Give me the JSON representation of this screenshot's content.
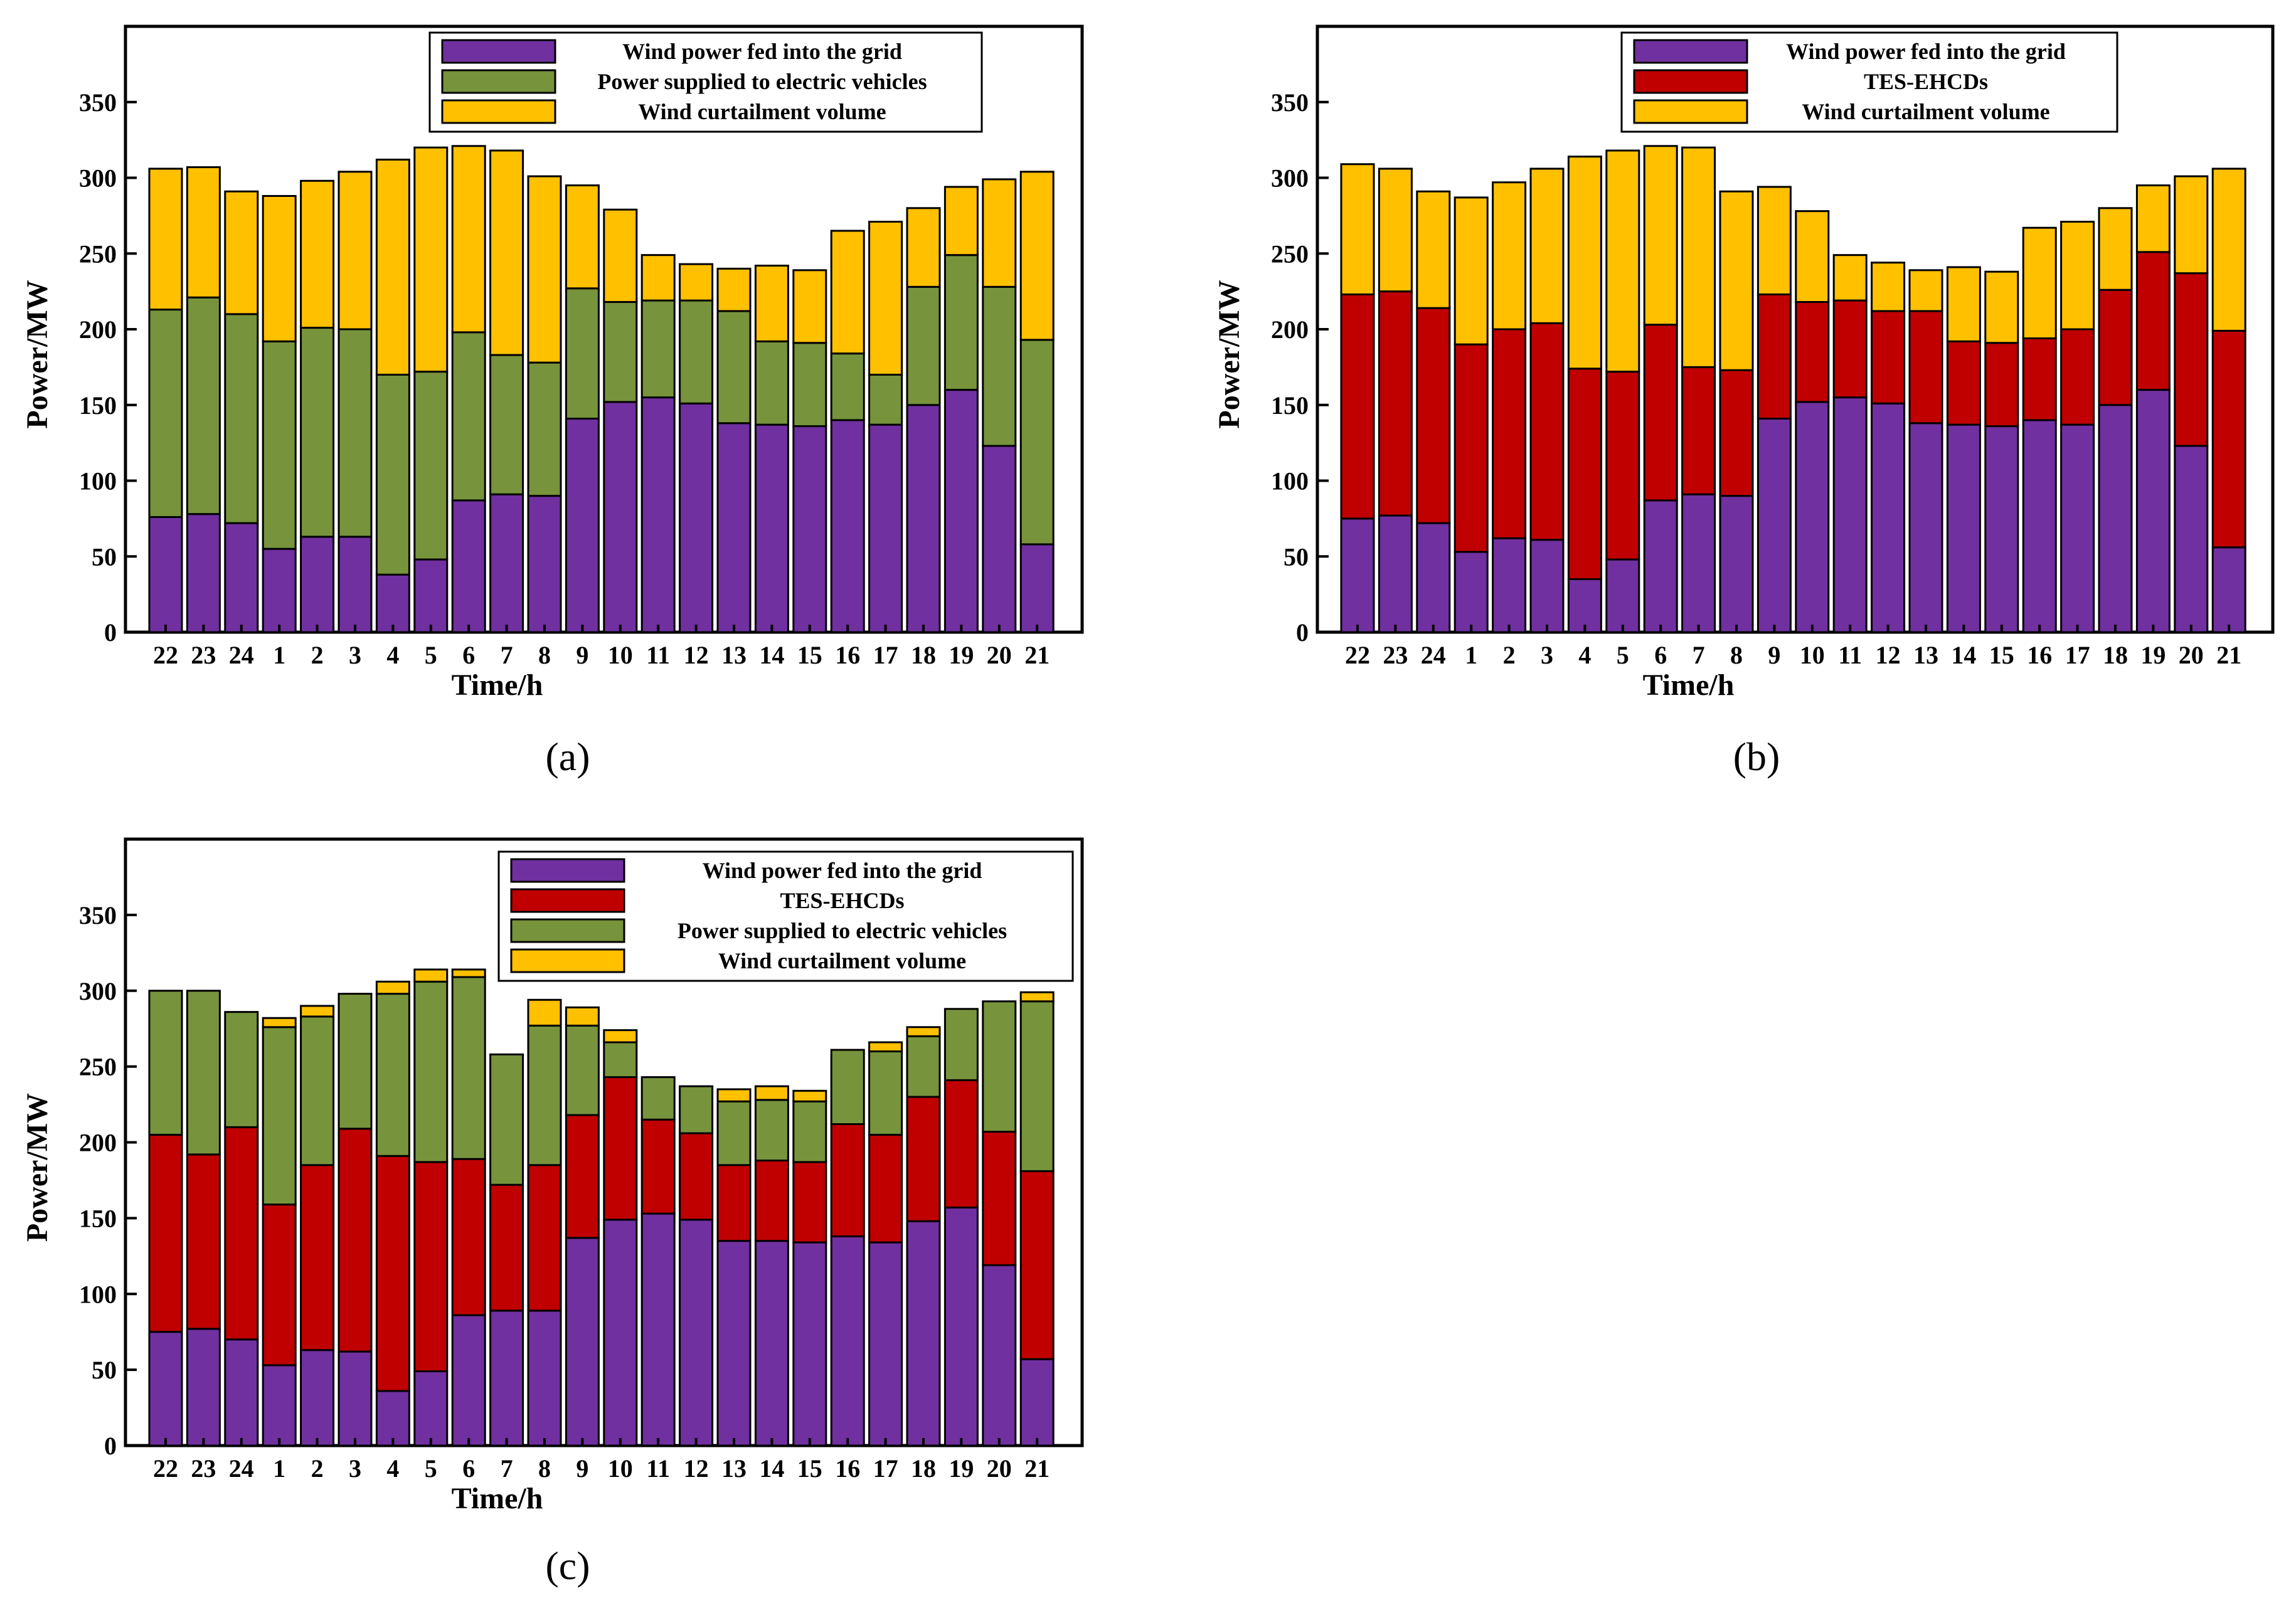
{
  "colors": {
    "grid": "#7030A0",
    "tes": "#C00000",
    "ev": "#77933C",
    "curt": "#FFC000"
  },
  "chart_data": [
    {
      "panel_label": "(a)",
      "type": "stacked-bar",
      "xlabel": "Time/h",
      "ylabel": "Power/MW",
      "ylim": [
        0,
        400
      ],
      "yticks": [
        0,
        50,
        100,
        150,
        200,
        250,
        300,
        350
      ],
      "categories": [
        "22",
        "23",
        "24",
        "1",
        "2",
        "3",
        "4",
        "5",
        "6",
        "7",
        "8",
        "9",
        "10",
        "11",
        "12",
        "13",
        "14",
        "15",
        "16",
        "17",
        "18",
        "19",
        "20",
        "21"
      ],
      "series": [
        {
          "name": "Wind power fed into the grid",
          "key": "grid",
          "values": [
            76,
            78,
            72,
            55,
            63,
            63,
            38,
            48,
            87,
            91,
            90,
            141,
            152,
            155,
            151,
            138,
            137,
            136,
            140,
            137,
            150,
            160,
            123,
            58
          ]
        },
        {
          "name": "Power supplied to electric vehicles",
          "key": "ev",
          "values": [
            137,
            143,
            138,
            137,
            138,
            137,
            132,
            124,
            111,
            92,
            88,
            86,
            66,
            64,
            68,
            74,
            55,
            55,
            44,
            33,
            78,
            89,
            105,
            135
          ]
        },
        {
          "name": "Wind curtailment volume",
          "key": "curt",
          "values": [
            93,
            86,
            81,
            96,
            97,
            104,
            142,
            148,
            123,
            135,
            123,
            68,
            61,
            30,
            24,
            28,
            50,
            48,
            81,
            101,
            52,
            45,
            71,
            111
          ]
        }
      ],
      "legend": [
        "Wind power fed into the grid",
        "Power supplied to electric vehicles",
        "Wind curtailment volume"
      ]
    },
    {
      "panel_label": "(b)",
      "type": "stacked-bar",
      "xlabel": "Time/h",
      "ylabel": "Power/MW",
      "ylim": [
        0,
        400
      ],
      "yticks": [
        0,
        50,
        100,
        150,
        200,
        250,
        300,
        350
      ],
      "categories": [
        "22",
        "23",
        "24",
        "1",
        "2",
        "3",
        "4",
        "5",
        "6",
        "7",
        "8",
        "9",
        "10",
        "11",
        "12",
        "13",
        "14",
        "15",
        "16",
        "17",
        "18",
        "19",
        "20",
        "21"
      ],
      "series": [
        {
          "name": "Wind power fed into the grid",
          "key": "grid",
          "values": [
            75,
            77,
            72,
            53,
            62,
            61,
            35,
            48,
            87,
            91,
            90,
            141,
            152,
            155,
            151,
            138,
            137,
            136,
            140,
            137,
            150,
            160,
            123,
            56
          ]
        },
        {
          "name": "TES-EHCDs",
          "key": "tes",
          "values": [
            148,
            148,
            142,
            137,
            138,
            143,
            139,
            124,
            116,
            84,
            83,
            82,
            66,
            64,
            61,
            74,
            55,
            55,
            54,
            63,
            76,
            91,
            114,
            143
          ]
        },
        {
          "name": "Wind curtailment volume",
          "key": "curt",
          "values": [
            86,
            81,
            77,
            97,
            97,
            102,
            140,
            146,
            118,
            145,
            118,
            71,
            60,
            30,
            32,
            27,
            49,
            47,
            73,
            71,
            54,
            44,
            64,
            107
          ]
        }
      ],
      "legend": [
        "Wind power fed into the grid",
        "TES-EHCDs",
        "Wind curtailment volume"
      ]
    },
    {
      "panel_label": "(c)",
      "type": "stacked-bar",
      "xlabel": "Time/h",
      "ylabel": "Power/MW",
      "ylim": [
        0,
        400
      ],
      "yticks": [
        0,
        50,
        100,
        150,
        200,
        250,
        300,
        350
      ],
      "categories": [
        "22",
        "23",
        "24",
        "1",
        "2",
        "3",
        "4",
        "5",
        "6",
        "7",
        "8",
        "9",
        "10",
        "11",
        "12",
        "13",
        "14",
        "15",
        "16",
        "17",
        "18",
        "19",
        "20",
        "21"
      ],
      "series": [
        {
          "name": "Wind power fed into the grid",
          "key": "grid",
          "values": [
            75,
            77,
            70,
            53,
            63,
            62,
            36,
            49,
            86,
            89,
            89,
            137,
            149,
            153,
            149,
            135,
            135,
            134,
            138,
            134,
            148,
            157,
            119,
            57
          ]
        },
        {
          "name": "TES-EHCDs",
          "key": "tes",
          "values": [
            130,
            115,
            140,
            106,
            122,
            147,
            155,
            138,
            103,
            83,
            96,
            81,
            94,
            62,
            57,
            50,
            53,
            53,
            74,
            71,
            82,
            84,
            88,
            124
          ]
        },
        {
          "name": "Power supplied to electric vehicles",
          "key": "ev",
          "values": [
            95,
            108,
            76,
            117,
            98,
            89,
            107,
            119,
            120,
            86,
            92,
            59,
            23,
            28,
            31,
            42,
            40,
            40,
            49,
            55,
            40,
            47,
            86,
            112
          ]
        },
        {
          "name": "Wind curtailment volume",
          "key": "curt",
          "values": [
            0,
            0,
            0,
            6,
            7,
            0,
            8,
            8,
            5,
            0,
            17,
            12,
            8,
            0,
            0,
            8,
            9,
            7,
            0,
            6,
            6,
            0,
            0,
            6
          ]
        }
      ],
      "legend": [
        "Wind power fed into the grid",
        "TES-EHCDs",
        "Power supplied to electric vehicles",
        "Wind curtailment volume"
      ]
    }
  ]
}
